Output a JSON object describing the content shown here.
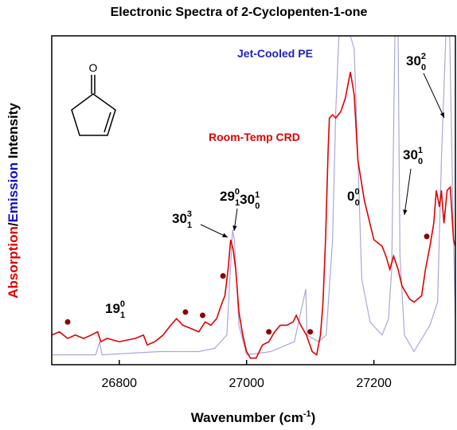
{
  "chart_data": {
    "type": "line",
    "title": "Electronic Spectra of 2-Cyclopenten-1-one",
    "x_label": {
      "text": "Wavenumber (cm",
      "sup": "-1",
      "tail": ")"
    },
    "y_label": [
      {
        "text": "Absorption",
        "color": "#e00000"
      },
      {
        "text": "/",
        "color": "#000000"
      },
      {
        "text": "Emission",
        "color": "#1010c0"
      },
      {
        "text": " Intensity",
        "color": "#000000"
      }
    ],
    "xlim": [
      26694,
      27328
    ],
    "ylim": [
      0,
      1
    ],
    "xticks": [
      26800,
      27000,
      27200
    ],
    "series": [
      {
        "name": "Room-Temp CRD",
        "color": "#e00000",
        "x": [
          26694,
          26706,
          26719,
          26731,
          26744,
          26756,
          26766,
          26771,
          26781,
          26800,
          26825,
          26838,
          26844,
          26856,
          26869,
          26881,
          26890,
          26900,
          26913,
          26925,
          26935,
          26944,
          26953,
          26960,
          26966,
          26971,
          26975,
          26979,
          26983,
          26988,
          26994,
          27000,
          27006,
          27015,
          27025,
          27035,
          27044,
          27053,
          27063,
          27073,
          27078,
          27085,
          27094,
          27103,
          27110,
          27116,
          27120,
          27124,
          27128,
          27130,
          27135,
          27140,
          27148,
          27155,
          27163,
          27169,
          27175,
          27185,
          27200,
          27213,
          27219,
          27225,
          27231,
          27238,
          27244,
          27256,
          27263,
          27275,
          27281,
          27288,
          27294,
          27298,
          27303,
          27306,
          27310,
          27315,
          27320,
          27325,
          27328
        ],
        "values": [
          0.09,
          0.1,
          0.08,
          0.09,
          0.08,
          0.09,
          0.1,
          0.07,
          0.08,
          0.07,
          0.08,
          0.09,
          0.06,
          0.07,
          0.09,
          0.12,
          0.14,
          0.12,
          0.11,
          0.1,
          0.13,
          0.12,
          0.14,
          0.18,
          0.21,
          0.29,
          0.38,
          0.35,
          0.29,
          0.16,
          0.09,
          0.04,
          0.02,
          0.02,
          0.06,
          0.07,
          0.1,
          0.12,
          0.12,
          0.13,
          0.15,
          0.12,
          0.09,
          0.04,
          0.03,
          0.09,
          0.19,
          0.38,
          0.65,
          0.75,
          0.76,
          0.75,
          0.77,
          0.81,
          0.89,
          0.82,
          0.62,
          0.5,
          0.38,
          0.36,
          0.33,
          0.29,
          0.33,
          0.29,
          0.24,
          0.2,
          0.19,
          0.21,
          0.29,
          0.36,
          0.43,
          0.53,
          0.48,
          0.53,
          0.43,
          0.53,
          0.54,
          0.38,
          0.36
        ]
      },
      {
        "name": "Jet-Cooled PE",
        "color": "#a8a8d8",
        "x": [
          26694,
          26763,
          26769,
          26773,
          26863,
          26925,
          26950,
          26969,
          26978,
          26981,
          26988,
          27000,
          27038,
          27075,
          27093,
          27095,
          27113,
          27125,
          27135,
          27140,
          27145,
          27163,
          27169,
          27175,
          27181,
          27194,
          27213,
          27223,
          27228,
          27233,
          27238,
          27241,
          27248,
          27263,
          27288,
          27300,
          27306,
          27313,
          27319,
          27325,
          27328
        ],
        "values": [
          0.03,
          0.03,
          0.07,
          0.03,
          0.04,
          0.04,
          0.05,
          0.09,
          0.41,
          0.38,
          0.12,
          0.03,
          0.04,
          0.07,
          0.23,
          0.09,
          0.07,
          0.09,
          0.38,
          0.77,
          1.0,
          1.0,
          0.96,
          0.62,
          0.26,
          0.13,
          0.09,
          0.14,
          0.29,
          1.0,
          1.0,
          0.33,
          0.09,
          0.04,
          0.12,
          0.19,
          0.62,
          1.0,
          1.0,
          0.38,
          0.14
        ]
      }
    ],
    "markers": {
      "color": "#8b0000",
      "x": [
        26719,
        26904,
        26931,
        26963,
        27035,
        27100,
        27283
      ],
      "values": [
        0.13,
        0.16,
        0.15,
        0.27,
        0.1,
        0.1,
        0.39
      ]
    },
    "annotations": [
      [
        {
          "base": "19",
          "sup": "0",
          "sub": "1"
        }
      ],
      [
        {
          "base": "30",
          "sup": "3",
          "sub": "1"
        }
      ],
      [
        {
          "base": "29",
          "sup": "0",
          "sub": "1"
        },
        {
          "base": "30",
          "sup": "1",
          "sub": "0"
        }
      ],
      [
        {
          "base": "0",
          "sup": "0",
          "sub": "0"
        }
      ],
      [
        {
          "base": "30",
          "sup": "1",
          "sub": "0"
        }
      ],
      [
        {
          "base": "30",
          "sup": "2",
          "sub": "0"
        }
      ]
    ]
  }
}
